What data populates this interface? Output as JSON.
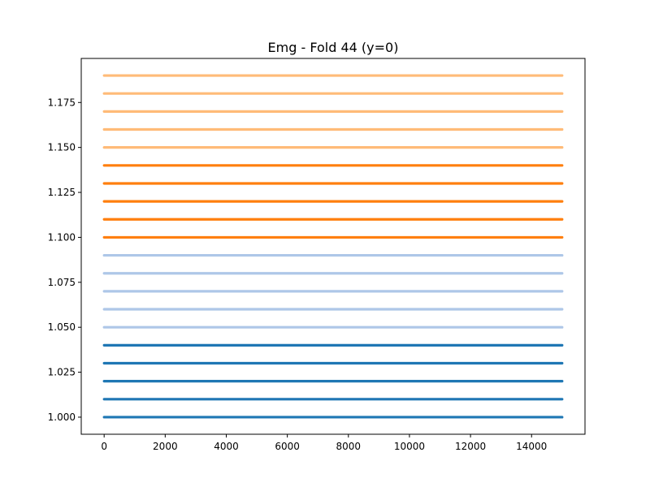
{
  "chart_data": {
    "type": "line",
    "title": "Emg - Fold 44 (y=0)",
    "xlabel": "",
    "ylabel": "",
    "xlim": [
      -750,
      15750
    ],
    "ylim": [
      0.9905,
      1.1995
    ],
    "x_range": [
      0,
      15000
    ],
    "x_ticks": [
      0,
      2000,
      4000,
      6000,
      8000,
      10000,
      12000,
      14000
    ],
    "y_ticks": [
      1.0,
      1.025,
      1.05,
      1.075,
      1.1,
      1.125,
      1.15,
      1.175
    ],
    "x_tick_labels": [
      "0",
      "2000",
      "4000",
      "6000",
      "8000",
      "10000",
      "12000",
      "14000"
    ],
    "y_tick_labels": [
      "1.000",
      "1.025",
      "1.050",
      "1.075",
      "1.100",
      "1.125",
      "1.150",
      "1.175"
    ],
    "grid": false,
    "series": [
      {
        "value": 1.0,
        "color": "#1f77b4"
      },
      {
        "value": 1.01,
        "color": "#1f77b4"
      },
      {
        "value": 1.02,
        "color": "#1f77b4"
      },
      {
        "value": 1.03,
        "color": "#1f77b4"
      },
      {
        "value": 1.04,
        "color": "#1f77b4"
      },
      {
        "value": 1.05,
        "color": "#aec7e8"
      },
      {
        "value": 1.06,
        "color": "#aec7e8"
      },
      {
        "value": 1.07,
        "color": "#aec7e8"
      },
      {
        "value": 1.08,
        "color": "#aec7e8"
      },
      {
        "value": 1.09,
        "color": "#aec7e8"
      },
      {
        "value": 1.1,
        "color": "#ff7f0e"
      },
      {
        "value": 1.11,
        "color": "#ff7f0e"
      },
      {
        "value": 1.12,
        "color": "#ff7f0e"
      },
      {
        "value": 1.13,
        "color": "#ff7f0e"
      },
      {
        "value": 1.14,
        "color": "#ff7f0e"
      },
      {
        "value": 1.15,
        "color": "#ffbb78"
      },
      {
        "value": 1.16,
        "color": "#ffbb78"
      },
      {
        "value": 1.17,
        "color": "#ffbb78"
      },
      {
        "value": 1.18,
        "color": "#ffbb78"
      },
      {
        "value": 1.19,
        "color": "#ffbb78"
      }
    ]
  }
}
